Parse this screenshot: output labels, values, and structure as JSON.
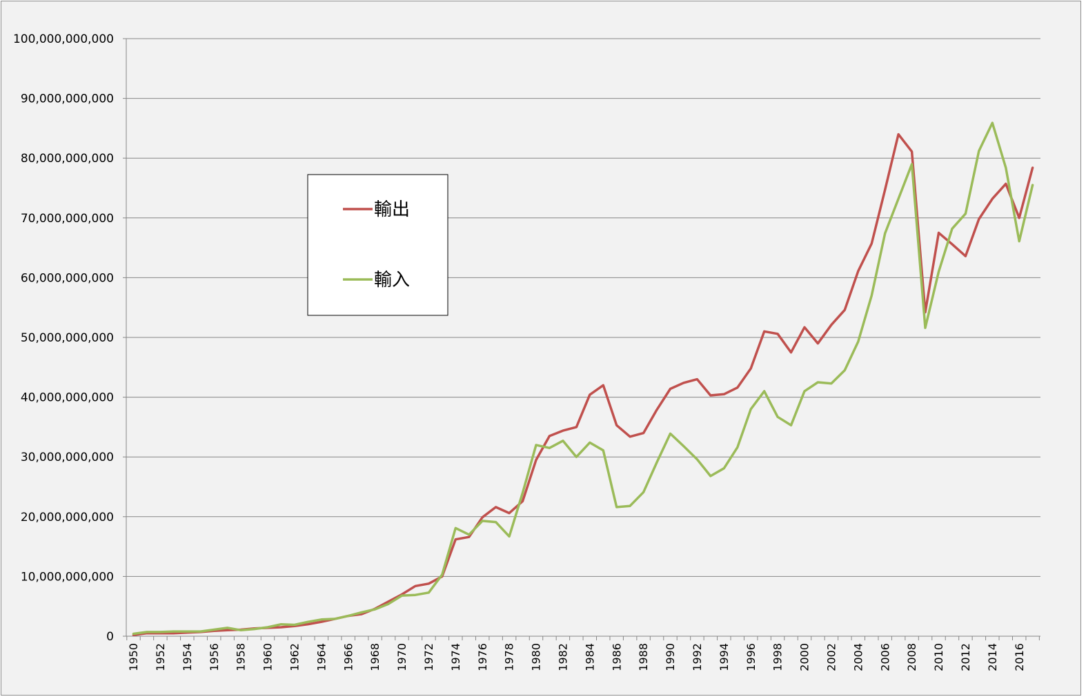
{
  "chart_data": {
    "type": "line",
    "title": "",
    "xlabel": "",
    "ylabel": "",
    "ylim": [
      0,
      100000000000
    ],
    "yticks": [
      0,
      10000000000,
      20000000000,
      30000000000,
      40000000000,
      50000000000,
      60000000000,
      70000000000,
      80000000000,
      90000000000,
      100000000000
    ],
    "ytick_labels": [
      "0",
      "10,000,000,000",
      "20,000,000,000",
      "30,000,000,000",
      "40,000,000,000",
      "50,000,000,000",
      "60,000,000,000",
      "70,000,000,000",
      "80,000,000,000",
      "90,000,000,000",
      "100,000,000,000"
    ],
    "x": [
      1950,
      1951,
      1952,
      1953,
      1954,
      1955,
      1956,
      1957,
      1958,
      1959,
      1960,
      1961,
      1962,
      1963,
      1964,
      1965,
      1966,
      1967,
      1968,
      1969,
      1970,
      1971,
      1972,
      1973,
      1974,
      1975,
      1976,
      1977,
      1978,
      1979,
      1980,
      1981,
      1982,
      1983,
      1984,
      1985,
      1986,
      1987,
      1988,
      1989,
      1990,
      1991,
      1992,
      1993,
      1994,
      1995,
      1996,
      1997,
      1998,
      1999,
      2000,
      2001,
      2002,
      2003,
      2004,
      2005,
      2006,
      2007,
      2008,
      2009,
      2010,
      2011,
      2012,
      2013,
      2014,
      2015,
      2016,
      2017
    ],
    "xtick_labels": [
      "1950",
      "1952",
      "1954",
      "1956",
      "1958",
      "1960",
      "1962",
      "1964",
      "1966",
      "1968",
      "1970",
      "1972",
      "1974",
      "1976",
      "1978",
      "1980",
      "1982",
      "1984",
      "1986",
      "1988",
      "1990",
      "1992",
      "1994",
      "1996",
      "1998",
      "2000",
      "2002",
      "2004",
      "2006",
      "2008",
      "2010",
      "2012",
      "2014",
      "2016"
    ],
    "grid": true,
    "legend_position": "left",
    "series": [
      {
        "name": "輸出",
        "color": "#c0504d",
        "values": [
          200000000,
          500000000,
          500000000,
          500000000,
          600000000,
          700000000,
          900000000,
          1000000000,
          1100000000,
          1300000000,
          1400000000,
          1500000000,
          1700000000,
          2000000000,
          2400000000,
          2900000000,
          3400000000,
          3700000000,
          4600000000,
          5800000000,
          7000000000,
          8400000000,
          8800000000,
          10000000000,
          16200000000,
          16600000000,
          19900000000,
          21600000000,
          20600000000,
          22600000000,
          29500000000,
          33500000000,
          34400000000,
          35000000000,
          40400000000,
          42000000000,
          35300000000,
          33400000000,
          34000000000,
          37900000000,
          41400000000,
          42400000000,
          43000000000,
          40300000000,
          40500000000,
          41600000000,
          44800000000,
          51000000000,
          50600000000,
          47500000000,
          51700000000,
          49000000000,
          52100000000,
          54600000000,
          61100000000,
          65700000000,
          74700000000,
          84000000000,
          81100000000,
          54200000000,
          67500000000,
          65600000000,
          63600000000,
          69800000000,
          73200000000,
          75700000000,
          70000000000,
          78400000000
        ]
      },
      {
        "name": "輸入",
        "color": "#9bbb59",
        "values": [
          400000000,
          700000000,
          700000000,
          800000000,
          800000000,
          800000000,
          1100000000,
          1400000000,
          1000000000,
          1200000000,
          1500000000,
          2000000000,
          1900000000,
          2400000000,
          2800000000,
          2900000000,
          3400000000,
          4000000000,
          4500000000,
          5400000000,
          6800000000,
          6900000000,
          7300000000,
          10300000000,
          18100000000,
          17000000000,
          19300000000,
          19100000000,
          16700000000,
          24000000000,
          32000000000,
          31500000000,
          32700000000,
          30000000000,
          32400000000,
          31100000000,
          21600000000,
          21800000000,
          24100000000,
          29100000000,
          33900000000,
          31800000000,
          29600000000,
          26800000000,
          28100000000,
          31600000000,
          38000000000,
          41000000000,
          36700000000,
          35300000000,
          41000000000,
          42500000000,
          42300000000,
          44500000000,
          49300000000,
          57000000000,
          67400000000,
          73200000000,
          79000000000,
          51600000000,
          61000000000,
          68200000000,
          70700000000,
          81200000000,
          85900000000,
          78400000000,
          66100000000,
          75500000000
        ]
      }
    ]
  }
}
